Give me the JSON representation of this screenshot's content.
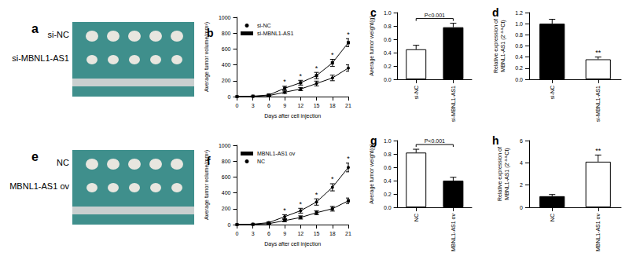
{
  "photo_panels": [
    {
      "title": "a",
      "labels": [
        "si-NC",
        "si-MBNL1-AS1"
      ]
    },
    {
      "title": "e",
      "labels": [
        "NC",
        "MBNL1-AS1 ov"
      ]
    }
  ],
  "chart_data": [
    {
      "type": "line",
      "title": "b",
      "x_label": "Days after cell injection",
      "y_label": "Average tumor volume(mm³)",
      "x": [
        0,
        3,
        6,
        9,
        12,
        15,
        18,
        21
      ],
      "series": [
        {
          "name": "si-NC",
          "color": "#000000",
          "marker": "circle",
          "values": [
            0,
            3,
            12,
            55,
            95,
            165,
            235,
            360
          ],
          "errors": [
            0,
            2,
            8,
            15,
            20,
            30,
            35,
            40
          ]
        },
        {
          "name": "si-MBNL1-AS1",
          "color": "#000000",
          "marker": "square",
          "values": [
            0,
            5,
            20,
            105,
            175,
            265,
            425,
            680
          ],
          "errors": [
            0,
            3,
            10,
            25,
            30,
            40,
            45,
            50
          ]
        }
      ],
      "annotations": [
        {
          "x": 9,
          "text": "*"
        },
        {
          "x": 12,
          "text": "*"
        },
        {
          "x": 15,
          "text": "*"
        },
        {
          "x": 18,
          "text": "*"
        },
        {
          "x": 21,
          "text": "*"
        }
      ],
      "xlim": [
        0,
        21
      ],
      "xticks": [
        0,
        3,
        6,
        9,
        12,
        15,
        18,
        21
      ],
      "ylim": [
        0,
        1000
      ],
      "yticks": [
        0,
        200,
        400,
        600,
        800,
        1000
      ],
      "grid": false,
      "legend": "upper left"
    },
    {
      "type": "bar",
      "title": "c",
      "y_label": "Average tumor weight(g)",
      "categories": [
        "si-NC",
        "si-MBNL1-AS1"
      ],
      "values": [
        0.45,
        0.78
      ],
      "errors": [
        0.06,
        0.06
      ],
      "colors": [
        "#ffffff",
        "#000000"
      ],
      "annotations": [
        {
          "between": [
            "si-NC",
            "si-MBNL1-AS1"
          ],
          "text": "P<0.001"
        }
      ],
      "ylim": [
        0,
        1.0
      ],
      "yticks": [
        {
          "value": 0,
          "label": "0.0"
        },
        {
          "value": 0.2,
          "label": "0.2"
        },
        {
          "value": 0.4,
          "label": "0.4"
        },
        {
          "value": 0.6,
          "label": "0.6"
        },
        {
          "value": 0.8,
          "label": "0.8"
        },
        {
          "value": 1.0,
          "label": "1.0"
        }
      ],
      "grid": false
    },
    {
      "type": "bar",
      "title": "d",
      "y_label": "Relative expression of\nMBNL1-AS1 (2⁻ᐞᐞCt)",
      "categories": [
        "si-NC",
        "si-MBNL1-AS1"
      ],
      "values": [
        1.0,
        0.36
      ],
      "errors": [
        0.08,
        0.04
      ],
      "colors": [
        "#000000",
        "#ffffff"
      ],
      "annotations": [
        {
          "category": "si-MBNL1-AS1",
          "text": "**"
        }
      ],
      "ylim": [
        0,
        1.2
      ],
      "yticks": [
        {
          "value": 0,
          "label": "0.0"
        },
        {
          "value": 0.2,
          "label": "0.2"
        },
        {
          "value": 0.4,
          "label": "0.4"
        },
        {
          "value": 0.6,
          "label": "0.6"
        },
        {
          "value": 0.8,
          "label": "0.8"
        },
        {
          "value": 1.0,
          "label": "1.0"
        },
        {
          "value": 1.2,
          "label": "1.2"
        }
      ],
      "grid": false
    },
    {
      "type": "line",
      "title": "f",
      "x_label": "Days after cell injection",
      "y_label": "Average tumor volume(mm³)",
      "x": [
        0,
        3,
        6,
        9,
        12,
        15,
        18,
        21
      ],
      "series": [
        {
          "name": "MBNL1-AS1 ov",
          "color": "#000000",
          "marker": "square",
          "values": [
            0,
            3,
            12,
            50,
            90,
            150,
            200,
            300
          ],
          "errors": [
            0,
            2,
            8,
            15,
            20,
            25,
            30,
            35
          ]
        },
        {
          "name": "NC",
          "color": "#000000",
          "marker": "circle",
          "values": [
            0,
            5,
            25,
            100,
            175,
            285,
            470,
            720
          ],
          "errors": [
            0,
            3,
            10,
            25,
            30,
            40,
            45,
            55
          ]
        }
      ],
      "annotations": [
        {
          "x": 9,
          "text": "*"
        },
        {
          "x": 12,
          "text": "*"
        },
        {
          "x": 15,
          "text": "*"
        },
        {
          "x": 18,
          "text": "*"
        },
        {
          "x": 21,
          "text": "*"
        }
      ],
      "xlim": [
        0,
        21
      ],
      "xticks": [
        0,
        3,
        6,
        9,
        12,
        15,
        18,
        21
      ],
      "ylim": [
        0,
        1000
      ],
      "yticks": [
        0,
        200,
        400,
        600,
        800,
        1000
      ],
      "grid": false,
      "legend": "upper left"
    },
    {
      "type": "bar",
      "title": "g",
      "y_label": "Average tumor weight(g)",
      "categories": [
        "NC",
        "MBNL1-AS1 ov"
      ],
      "values": [
        0.82,
        0.4
      ],
      "errors": [
        0.05,
        0.05
      ],
      "colors": [
        "#ffffff",
        "#000000"
      ],
      "annotations": [
        {
          "between": [
            "NC",
            "MBNL1-AS1 ov"
          ],
          "text": "P<0.001"
        }
      ],
      "ylim": [
        0,
        1.0
      ],
      "yticks": [
        {
          "value": 0,
          "label": "0.0"
        },
        {
          "value": 0.2,
          "label": "0.2"
        },
        {
          "value": 0.4,
          "label": "0.4"
        },
        {
          "value": 0.6,
          "label": "0.6"
        },
        {
          "value": 0.8,
          "label": "0.8"
        },
        {
          "value": 1.0,
          "label": "1.0"
        }
      ],
      "grid": false
    },
    {
      "type": "bar",
      "title": "h",
      "y_label": "Relative expression of\nMBNL1-AS1 (2⁻ᐞᐞCt)",
      "categories": [
        "NC",
        "MBNL1-AS1 ov"
      ],
      "values": [
        1.0,
        4.1
      ],
      "errors": [
        0.15,
        0.6
      ],
      "colors": [
        "#000000",
        "#ffffff"
      ],
      "annotations": [
        {
          "category": "MBNL1-AS1 ov",
          "text": "**"
        }
      ],
      "ylim": [
        0,
        6
      ],
      "yticks": [
        0,
        2,
        4,
        6
      ],
      "grid": false
    }
  ]
}
